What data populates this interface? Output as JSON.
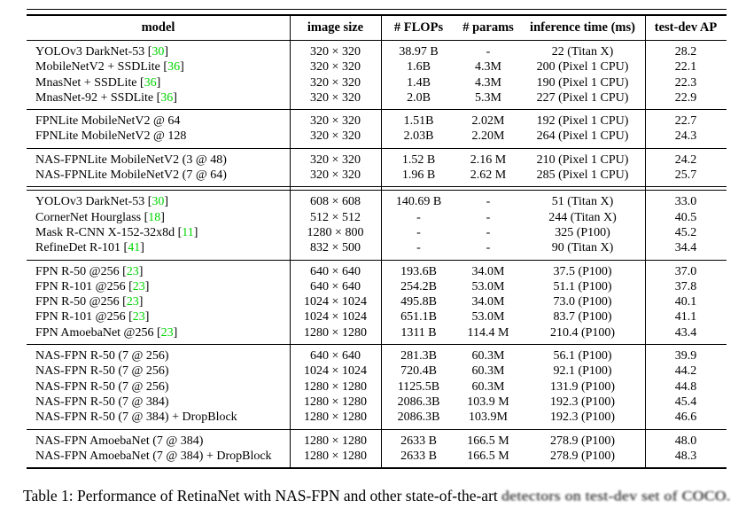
{
  "colors": {
    "citation_green": "#00d400",
    "rule_black": "#000000"
  },
  "table": {
    "headers": [
      "model",
      "image size",
      "# FLOPs",
      "# params",
      "inference time (ms)",
      "test-dev AP"
    ],
    "sections": [
      {
        "rows": [
          {
            "model": "YOLOv3 DarkNet-53 ",
            "cite": "30",
            "size": "320 × 320",
            "flops": "38.97 B",
            "params": "-",
            "time": "22 (Titan X)",
            "ap": "28.2"
          },
          {
            "model": "MobileNetV2 + SSDLite ",
            "cite": "36",
            "size": "320 × 320",
            "flops": "1.6B",
            "params": "4.3M",
            "time": "200 (Pixel 1 CPU)",
            "ap": "22.1"
          },
          {
            "model": "MnasNet + SSDLite ",
            "cite": "36",
            "size": "320 × 320",
            "flops": "1.4B",
            "params": "4.3M",
            "time": "190 (Pixel 1 CPU)",
            "ap": "22.3"
          },
          {
            "model": "MnasNet-92 + SSDLite ",
            "cite": "36",
            "size": "320 × 320",
            "flops": "2.0B",
            "params": "5.3M",
            "time": "227 (Pixel 1 CPU)",
            "ap": "22.9"
          }
        ]
      },
      {
        "rows": [
          {
            "model": "FPNLite MobileNetV2  @ 64",
            "cite": null,
            "size": "320 × 320",
            "flops": "1.51B",
            "params": "2.02M",
            "time": "192 (Pixel 1 CPU)",
            "ap": "22.7"
          },
          {
            "model": "FPNLite MobileNetV2  @ 128",
            "cite": null,
            "size": "320 × 320",
            "flops": "2.03B",
            "params": "2.20M",
            "time": "264 (Pixel 1 CPU)",
            "ap": "24.3"
          }
        ]
      },
      {
        "rows": [
          {
            "model": "NAS-FPNLite MobileNetV2 (3 @ 48)",
            "cite": null,
            "size": "320 × 320",
            "flops": "1.52 B",
            "params": "2.16 M",
            "time": "210 (Pixel 1 CPU)",
            "ap": "24.2"
          },
          {
            "model": "NAS-FPNLite MobileNetV2 (7 @ 64)",
            "cite": null,
            "size": "320 × 320",
            "flops": "1.96 B",
            "params": "2.62 M",
            "time": "285 (Pixel 1 CPU)",
            "ap": "25.7"
          }
        ]
      },
      {
        "double_rule_before": true,
        "rows": [
          {
            "model": "YOLOv3 DarkNet-53 ",
            "cite": "30",
            "size": "608 × 608",
            "flops": "140.69 B",
            "params": "-",
            "time": "51 (Titan X)",
            "ap": "33.0"
          },
          {
            "model": "CornerNet Hourglass ",
            "cite": "18",
            "size": "512 × 512",
            "flops": "-",
            "params": "-",
            "time": "244 (Titan X)",
            "ap": "40.5"
          },
          {
            "model": "Mask R-CNN X-152-32x8d ",
            "cite": "11",
            "size": "1280 × 800",
            "flops": "-",
            "params": "-",
            "time": "325 (P100)",
            "ap": "45.2"
          },
          {
            "model": "RefineDet R-101 ",
            "cite": "41",
            "size": "832 × 500",
            "flops": "-",
            "params": "-",
            "time": "90 (Titan X)",
            "ap": "34.4"
          }
        ]
      },
      {
        "rows": [
          {
            "model": "FPN R-50 @256 ",
            "cite": "23",
            "size": "640 × 640",
            "flops": "193.6B",
            "params": "34.0M",
            "time": "37.5 (P100)",
            "ap": "37.0"
          },
          {
            "model": "FPN R-101 @256 ",
            "cite": "23",
            "size": "640 × 640",
            "flops": "254.2B",
            "params": "53.0M",
            "time": "51.1 (P100)",
            "ap": "37.8"
          },
          {
            "model": "FPN R-50 @256 ",
            "cite": "23",
            "size": "1024 × 1024",
            "flops": "495.8B",
            "params": "34.0M",
            "time": "73.0 (P100)",
            "ap": "40.1"
          },
          {
            "model": "FPN R-101 @256 ",
            "cite": "23",
            "size": "1024 × 1024",
            "flops": "651.1B",
            "params": "53.0M",
            "time": "83.7 (P100)",
            "ap": "41.1"
          },
          {
            "model": "FPN AmoebaNet @256 ",
            "cite": "23",
            "size": "1280 × 1280",
            "flops": "1311 B",
            "params": "114.4 M",
            "time": "210.4 (P100)",
            "ap": "43.4"
          }
        ]
      },
      {
        "rows": [
          {
            "model": "NAS-FPN R-50 (7 @ 256)",
            "cite": null,
            "size": "640 × 640",
            "flops": "281.3B",
            "params": "60.3M",
            "time": "56.1 (P100)",
            "ap": "39.9"
          },
          {
            "model": "NAS-FPN R-50 (7 @ 256)",
            "cite": null,
            "size": "1024 × 1024",
            "flops": "720.4B",
            "params": "60.3M",
            "time": "92.1 (P100)",
            "ap": "44.2"
          },
          {
            "model": "NAS-FPN R-50 (7 @ 256)",
            "cite": null,
            "size": "1280 × 1280",
            "flops": "1125.5B",
            "params": "60.3M",
            "time": "131.9 (P100)",
            "ap": "44.8"
          },
          {
            "model": "NAS-FPN R-50 (7 @ 384)",
            "cite": null,
            "size": "1280 × 1280",
            "flops": "2086.3B",
            "params": "103.9 M",
            "time": "192.3 (P100)",
            "ap": "45.4"
          },
          {
            "model": "NAS-FPN R-50 (7 @ 384) + DropBlock",
            "cite": null,
            "size": "1280 × 1280",
            "flops": "2086.3B",
            "params": "103.9M",
            "time": "192.3 (P100)",
            "ap": "46.6"
          }
        ]
      },
      {
        "rows": [
          {
            "model": "NAS-FPN AmoebaNet (7 @ 384)",
            "cite": null,
            "size": "1280 × 1280",
            "flops": "2633 B",
            "params": "166.5 M",
            "time": "278.9 (P100)",
            "ap": "48.0"
          },
          {
            "model": "NAS-FPN AmoebaNet (7 @ 384) + DropBlock",
            "cite": null,
            "size": "1280 × 1280",
            "flops": "2633 B",
            "params": "166.5 M",
            "time": "278.9 (P100)",
            "ap": "48.3"
          }
        ]
      }
    ]
  },
  "caption": {
    "prefix": "Table 1: Performance of RetinaNet with NAS-FPN and other state-of-the-art ",
    "garbled_tail": "detectors on test-dev set of COCO."
  }
}
